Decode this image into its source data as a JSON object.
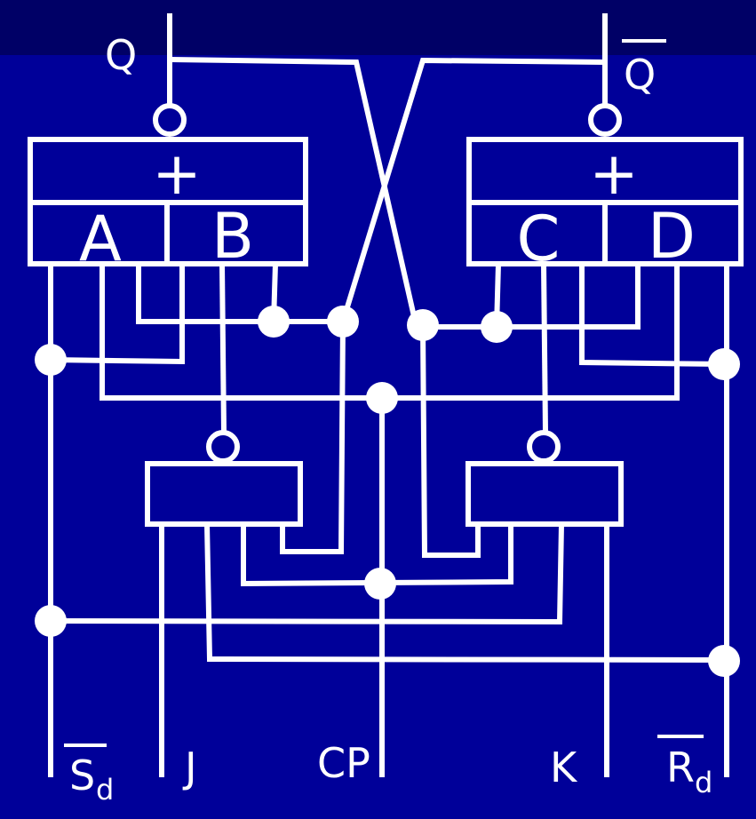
{
  "colors": {
    "background": "#000099",
    "top_band": "#000066",
    "line": "#ffffff"
  },
  "outputs": {
    "q": "Q",
    "q_bar": "Q"
  },
  "gates": {
    "left_or_symbol": "+",
    "right_or_symbol": "+",
    "a": "A",
    "b": "B",
    "c": "C",
    "d": "D"
  },
  "inputs": {
    "sd_main": "S",
    "sd_sub": "d",
    "j": "J",
    "cp": "CP",
    "k": "K",
    "rd_main": "R",
    "rd_sub": "d"
  }
}
